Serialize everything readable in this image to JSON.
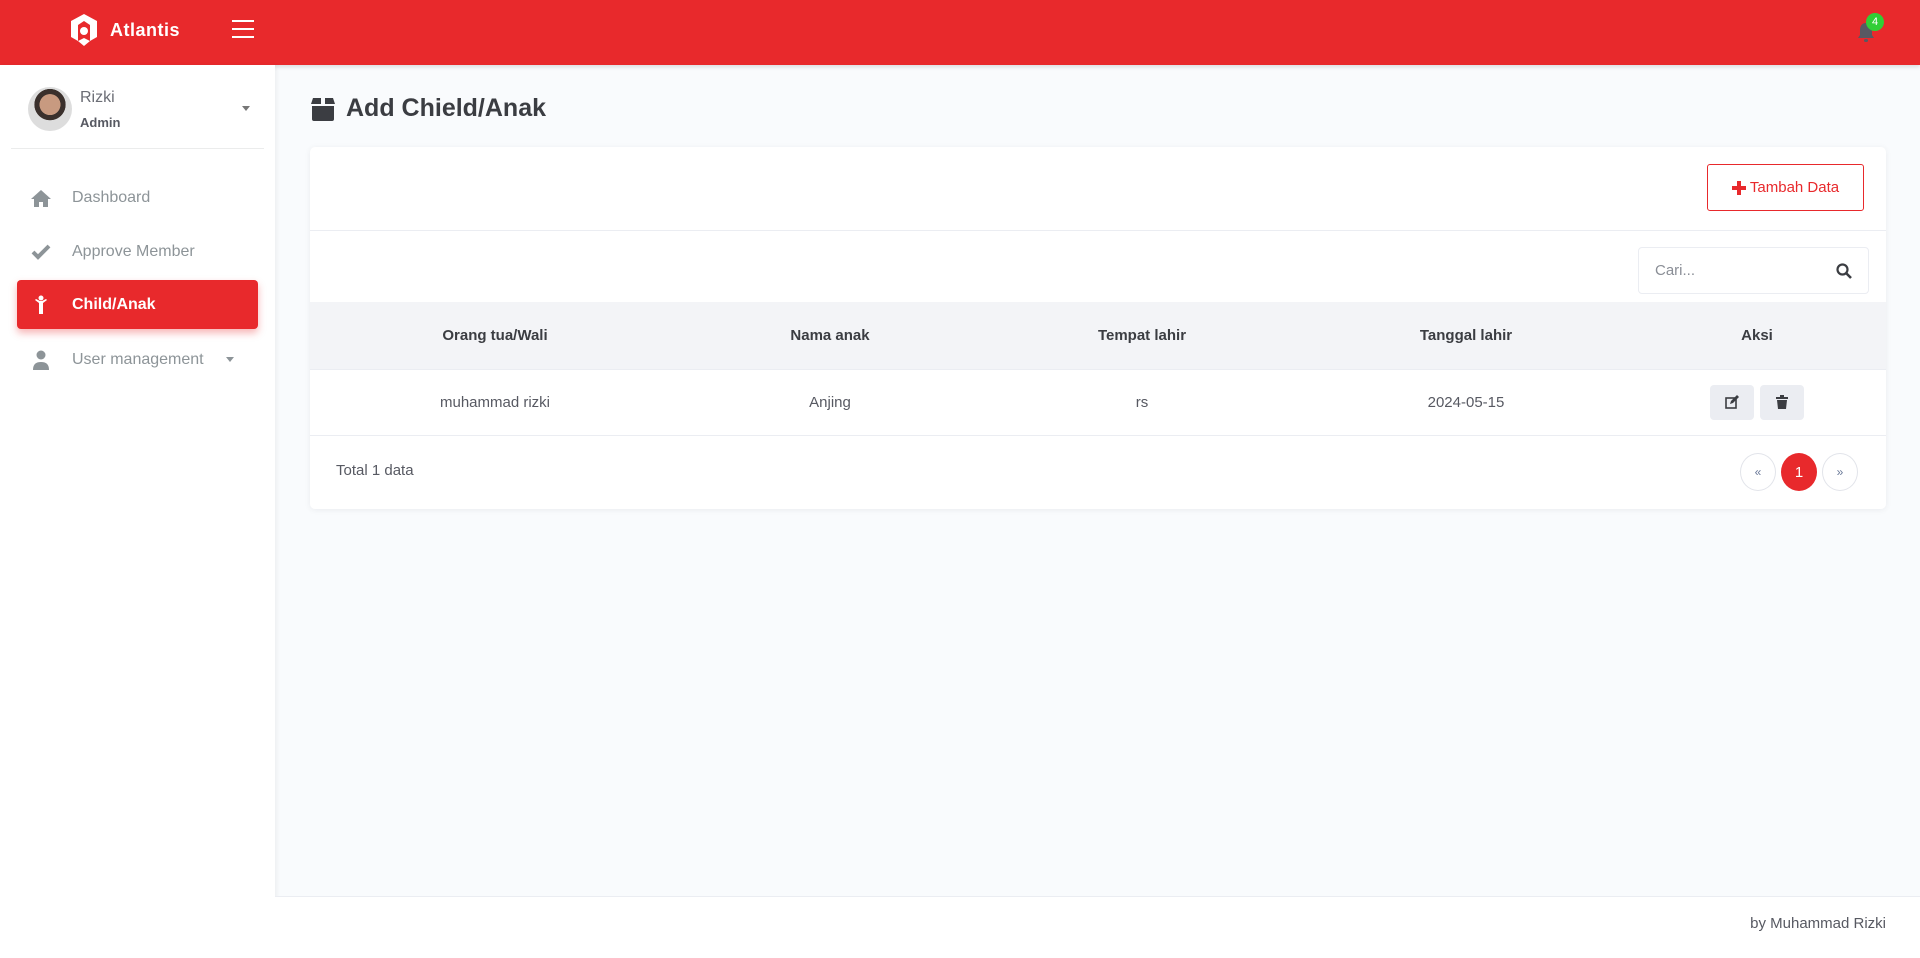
{
  "header": {
    "brand": "Atlantis",
    "notification_count": "4"
  },
  "sidebar": {
    "user": {
      "name": "Rizki",
      "role": "Admin"
    },
    "items": [
      {
        "label": "Dashboard",
        "icon": "home-icon"
      },
      {
        "label": "Approve Member",
        "icon": "check-icon"
      },
      {
        "label": "Child/Anak",
        "icon": "child-icon",
        "active": true
      },
      {
        "label": "User management",
        "icon": "user-icon"
      }
    ]
  },
  "page": {
    "title": "Add Chield/Anak",
    "add_button": "Tambah Data",
    "search_placeholder": "Cari..."
  },
  "table": {
    "columns": [
      "Orang tua/Wali",
      "Nama anak",
      "Tempat lahir",
      "Tanggal lahir",
      "Aksi"
    ],
    "rows": [
      {
        "parent": "muhammad rizki",
        "child": "Anjing",
        "birthplace": "rs",
        "birthdate": "2024-05-15"
      }
    ]
  },
  "pagination": {
    "total": "Total 1 data",
    "prev": "«",
    "current": "1",
    "next": "»"
  },
  "footer": {
    "text": "by Muhammad Rizki"
  },
  "colors": {
    "primary": "#e8292c",
    "badge": "#31ce36"
  }
}
